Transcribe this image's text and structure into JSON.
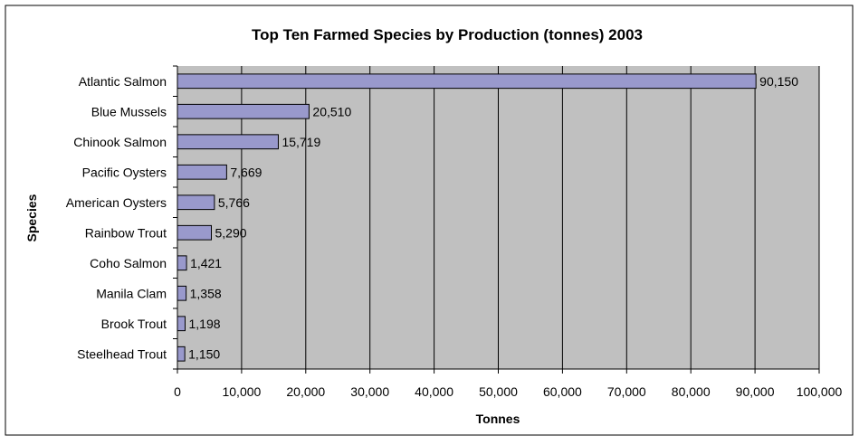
{
  "chart_data": {
    "type": "bar",
    "orientation": "horizontal",
    "title": "Top Ten Farmed Species by Production (tonnes) 2003",
    "xlabel": "Tonnes",
    "ylabel": "Species",
    "categories": [
      "Atlantic Salmon",
      "Blue Mussels",
      "Chinook Salmon",
      "Pacific Oysters",
      "American Oysters",
      "Rainbow Trout",
      "Coho Salmon",
      "Manila Clam",
      "Brook Trout",
      "Steelhead Trout"
    ],
    "values": [
      90150,
      20510,
      15719,
      7669,
      5766,
      5290,
      1421,
      1358,
      1198,
      1150
    ],
    "data_labels": [
      "90,150",
      "20,510",
      "15,719",
      "7,669",
      "5,766",
      "5,290",
      "1,421",
      "1,358",
      "1,198",
      "1,150"
    ],
    "xlim": [
      0,
      100000
    ],
    "x_ticks": [
      "0",
      "10,000",
      "20,000",
      "30,000",
      "40,000",
      "50,000",
      "60,000",
      "70,000",
      "80,000",
      "90,000",
      "100,000"
    ],
    "grid": "vertical",
    "legend": "none",
    "colors": {
      "bar_fill": "#9999cc",
      "bar_stroke": "#000000",
      "plot_background": "#c0c0c0",
      "page_background": "#ffffff",
      "gridline": "#000000"
    }
  }
}
